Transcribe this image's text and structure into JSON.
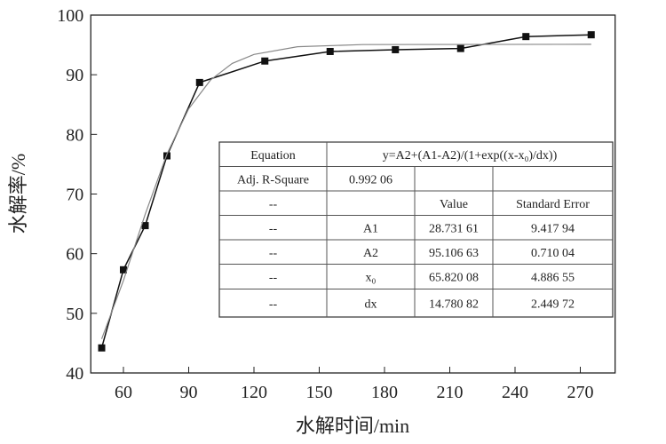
{
  "chart_data": {
    "type": "line",
    "x_label": "水解时间/min",
    "y_label": "水解率/%",
    "xlim": [
      45,
      286
    ],
    "ylim": [
      40,
      100
    ],
    "xticks": [
      60,
      90,
      120,
      150,
      180,
      210,
      240,
      270
    ],
    "yticks": [
      40,
      50,
      60,
      70,
      80,
      90,
      100
    ],
    "series": [
      {
        "color": "#111111",
        "marker": "square",
        "x": [
          50,
          60,
          70,
          80,
          95,
          125,
          155,
          185,
          215,
          245,
          275
        ],
        "values": [
          44.2,
          57.3,
          64.7,
          76.4,
          88.7,
          92.3,
          93.9,
          94.2,
          94.4,
          96.4,
          96.7
        ]
      },
      {
        "color": "#888888",
        "marker": "none",
        "x": [
          50,
          60,
          70,
          80,
          90,
          100,
          110,
          120,
          140,
          170,
          275
        ],
        "values": [
          45.7,
          55.5,
          66.6,
          76.7,
          84.3,
          89.1,
          91.9,
          93.4,
          94.7,
          95.05,
          95.1
        ]
      }
    ],
    "table": {
      "rows": [
        [
          "Equation",
          "y=A2+(A1-A2)/(1+exp((x-x₀)/dx))"
        ],
        [
          "Adj. R-Square",
          "0.992 06"
        ],
        [
          "--",
          "Value",
          "Standard Error"
        ],
        [
          "--",
          "A1",
          "28.731 61",
          "9.417 94"
        ],
        [
          "--",
          "A2",
          "95.106 63",
          "0.710 04"
        ],
        [
          "--",
          "x₀",
          "65.820 08",
          "4.886 55"
        ],
        [
          "--",
          "dx",
          "14.780 82",
          "2.449 72"
        ]
      ]
    }
  }
}
